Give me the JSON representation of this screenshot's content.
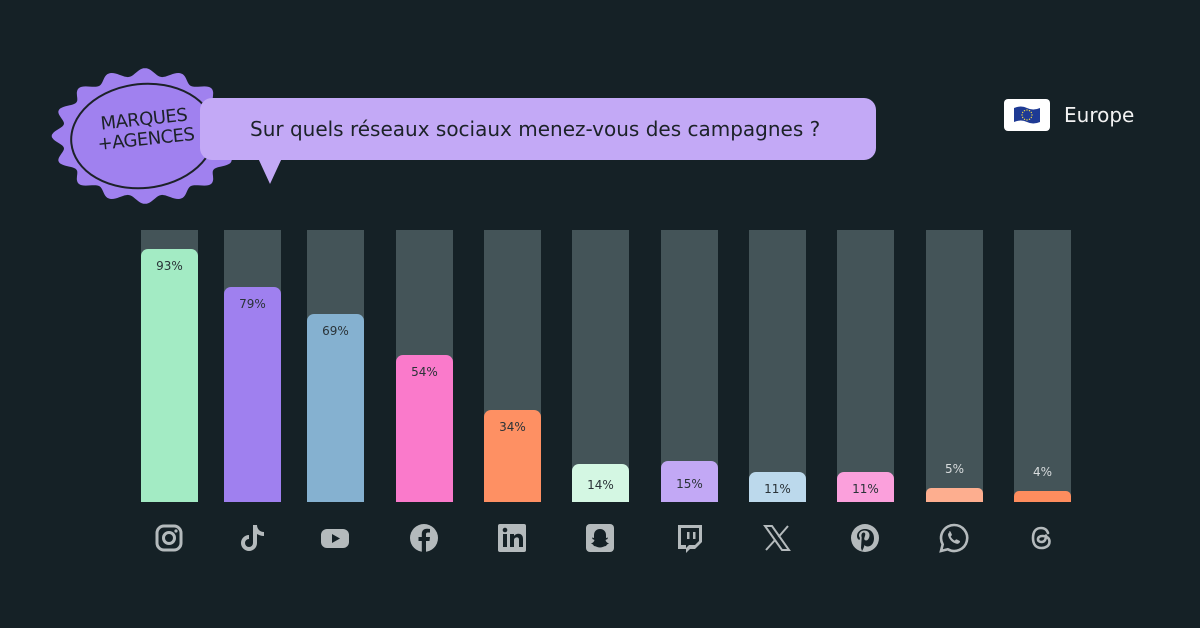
{
  "badge": {
    "line1": "MARQUES",
    "line2": "+AGENCES"
  },
  "question": "Sur quels réseaux sociaux menez-vous des campagnes ?",
  "region": {
    "label": "Europe",
    "icon": "eu-flag-icon"
  },
  "chart_data": {
    "type": "bar",
    "title": "Sur quels réseaux sociaux menez-vous des campagnes ?",
    "categories": [
      "Instagram",
      "TikTok",
      "YouTube",
      "Facebook",
      "LinkedIn",
      "Snapchat",
      "Twitch",
      "X",
      "Pinterest",
      "WhatsApp",
      "Threads"
    ],
    "values": [
      93,
      79,
      69,
      54,
      34,
      14,
      15,
      11,
      11,
      5,
      4
    ],
    "labels": [
      "93%",
      "79%",
      "69%",
      "54%",
      "34%",
      "14%",
      "15%",
      "11%",
      "11%",
      "5%",
      "4%"
    ],
    "ylim": [
      0,
      100
    ],
    "grid": false,
    "colors": [
      "#a3ebc4",
      "#9f80ef",
      "#85b1d0",
      "#fa7acb",
      "#fe9063",
      "#d4f7e3",
      "#c2a8f5",
      "#bcd9ec",
      "#fba0dc",
      "#fdae8f",
      "#fe8d5e"
    ],
    "icons": [
      "instagram-icon",
      "tiktok-icon",
      "youtube-icon",
      "facebook-icon",
      "linkedin-icon",
      "snapchat-icon",
      "twitch-icon",
      "x-icon",
      "pinterest-icon",
      "whatsapp-icon",
      "threads-icon"
    ],
    "track_color": "#445458"
  }
}
